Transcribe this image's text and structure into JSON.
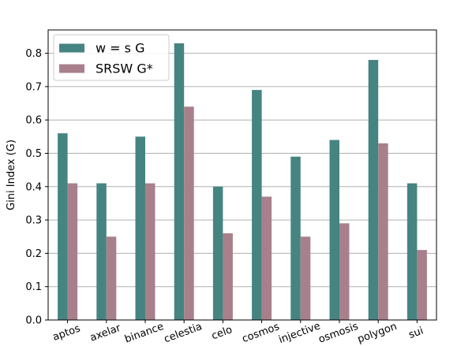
{
  "chart_data": {
    "type": "bar",
    "title": "",
    "xlabel": "",
    "ylabel": "Gini Index (G)",
    "ylim": [
      0,
      0.87
    ],
    "yticks": [
      "0.0",
      "0.1",
      "0.2",
      "0.3",
      "0.4",
      "0.5",
      "0.6",
      "0.7",
      "0.8"
    ],
    "grid": "horizontal",
    "legend_position": "top-left",
    "categories": [
      "aptos",
      "axelar",
      "binance",
      "celestia",
      "celo",
      "cosmos",
      "injective",
      "osmosis",
      "polygon",
      "sui"
    ],
    "series": [
      {
        "name": "w = s   G",
        "color": "#468481",
        "values": [
          0.56,
          0.41,
          0.55,
          0.83,
          0.4,
          0.69,
          0.49,
          0.54,
          0.78,
          0.41
        ]
      },
      {
        "name": "SRSW G*",
        "color": "#a8808b",
        "values": [
          0.41,
          0.25,
          0.41,
          0.64,
          0.26,
          0.37,
          0.25,
          0.29,
          0.53,
          0.21
        ]
      }
    ]
  }
}
